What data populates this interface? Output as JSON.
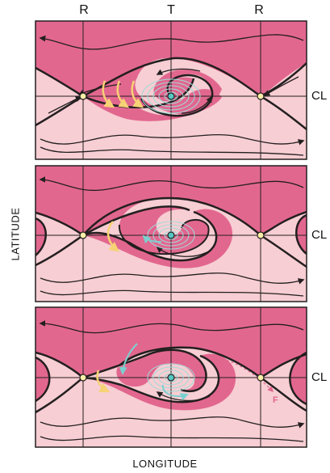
{
  "top_labels": {
    "left": "R",
    "center": "T",
    "right": "R"
  },
  "cl_labels": [
    "CL",
    "CL",
    "CL"
  ],
  "axes": {
    "y": "LATITUDE",
    "x": "LONGITUDE"
  },
  "arrow_marker": "F",
  "colors": {
    "dark_pink": "#e2678f",
    "light_pink": "#f7ced3",
    "yellow_arrow": "#f7d274",
    "cyan_arrow": "#7ccfcf",
    "point_yellow": "#fbf0a8",
    "point_cyan": "#55c7c2",
    "border": "#231f20"
  },
  "panels": [
    "panel-1",
    "panel-2",
    "panel-3"
  ]
}
